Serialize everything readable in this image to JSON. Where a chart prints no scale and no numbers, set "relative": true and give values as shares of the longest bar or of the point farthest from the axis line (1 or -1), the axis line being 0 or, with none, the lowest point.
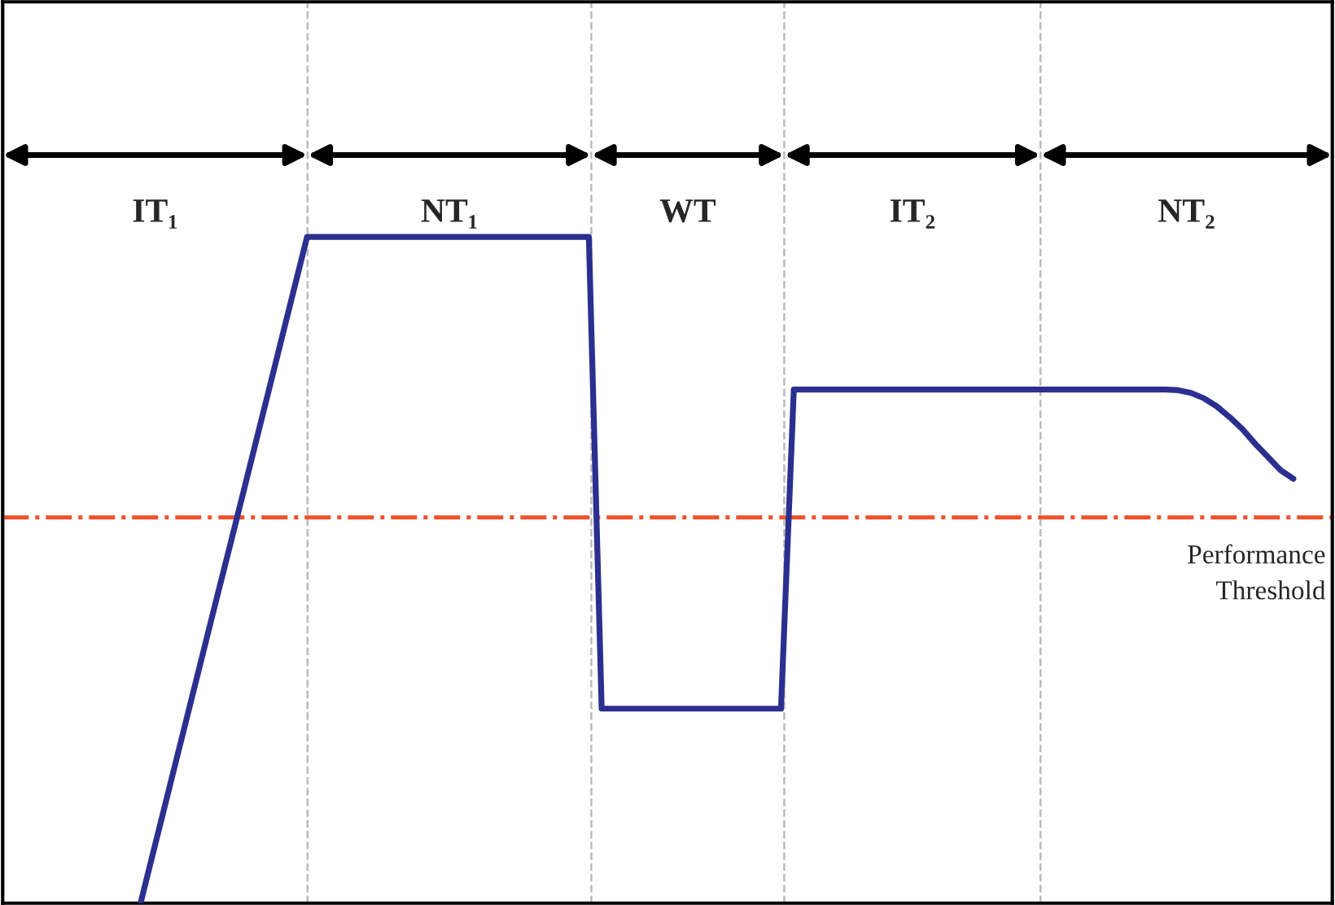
{
  "chart_data": {
    "type": "line",
    "relative": true,
    "line_style": "solid",
    "categories": [
      null,
      null,
      null,
      null,
      null,
      null,
      null,
      null,
      null,
      null,
      null,
      null,
      null,
      null,
      null,
      null,
      null,
      null,
      null,
      null,
      null,
      null,
      null,
      null,
      null,
      null,
      null,
      null,
      null,
      null,
      null,
      null,
      null,
      null,
      null,
      null,
      null,
      null,
      null,
      null,
      null,
      null,
      null,
      null,
      null,
      null,
      null,
      null,
      null,
      null,
      null,
      null,
      null,
      null,
      null,
      null,
      null,
      null,
      null,
      null,
      null,
      null,
      null,
      null,
      null,
      null,
      null,
      null,
      null,
      null,
      null,
      null,
      null,
      null,
      null,
      null,
      null,
      null,
      null,
      null,
      null,
      null,
      null,
      null,
      null,
      null,
      null,
      null,
      null,
      null,
      null
    ],
    "series": [
      {
        "color": "#2b2f8f",
        "values": [
          0,
          0.077,
          0.154,
          0.231,
          0.308,
          0.385,
          0.462,
          0.538,
          0.615,
          0.692,
          0.769,
          0.846,
          0.923,
          1,
          1,
          1,
          1,
          1,
          1,
          1,
          1,
          1,
          1,
          1,
          1,
          1,
          1,
          1,
          1,
          1,
          1,
          1,
          1,
          1,
          1,
          1,
          0.292,
          0.292,
          0.292,
          0.292,
          0.292,
          0.292,
          0.292,
          0.292,
          0.292,
          0.292,
          0.292,
          0.292,
          0.292,
          0.292,
          0.292,
          0.771,
          0.771,
          0.771,
          0.771,
          0.771,
          0.771,
          0.771,
          0.771,
          0.771,
          0.771,
          0.771,
          0.771,
          0.771,
          0.771,
          0.771,
          0.771,
          0.771,
          0.771,
          0.771,
          0.771,
          0.771,
          0.771,
          0.771,
          0.771,
          0.771,
          0.771,
          0.771,
          0.771,
          0.771,
          0.771,
          0.77,
          0.766,
          0.758,
          0.746,
          0.73,
          0.712,
          0.69,
          0.67,
          0.65,
          0.637
        ]
      }
    ],
    "ref_lines": [
      {
        "axis": "y",
        "value": 0.579,
        "label": "Performance\nThreshold",
        "color": "#f0502a",
        "line_style": "dashdot"
      }
    ],
    "annotations": [
      "IT₁",
      "NT₁",
      "WT",
      "IT₂",
      "NT₂"
    ]
  }
}
